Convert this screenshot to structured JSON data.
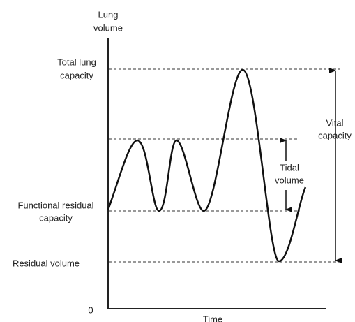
{
  "y_axis": {
    "label_lines": [
      "Lung",
      "volume"
    ],
    "origin": "0"
  },
  "x_axis": {
    "label": "Time"
  },
  "levels": {
    "total_lung_capacity": [
      "Total lung",
      "capacity"
    ],
    "functional_residual_capacity": [
      "Functional residual",
      "capacity"
    ],
    "residual_volume": [
      "Residual volume"
    ]
  },
  "brackets": {
    "tidal_volume": [
      "Tidal",
      "volume"
    ],
    "vital_capacity": [
      "Vital",
      "capacity"
    ]
  }
}
